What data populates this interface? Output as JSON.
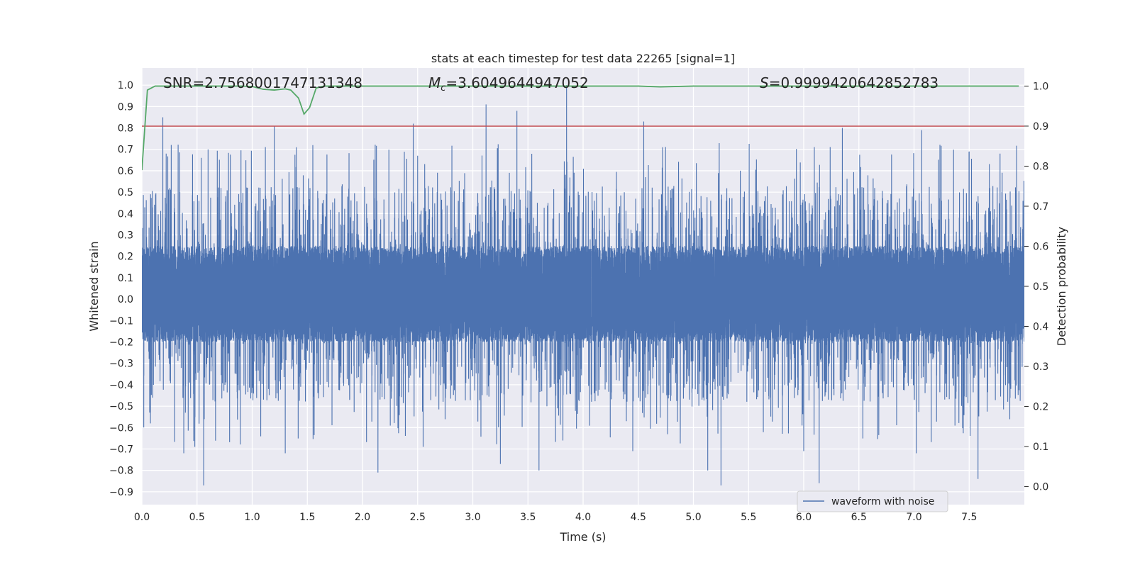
{
  "chart_data": {
    "type": "line",
    "title": "stats at each timestep for test data 22265 [signal=1]",
    "xlabel": "Time (s)",
    "ylabel": "Whitened strain",
    "y2label": "Detection probability",
    "xlim": [
      0.0,
      8.0
    ],
    "ylim": [
      -0.96,
      1.08
    ],
    "y2lim": [
      -0.045,
      1.045
    ],
    "grid": true,
    "x_ticks": [
      "0.0",
      "0.5",
      "1.0",
      "1.5",
      "2.0",
      "2.5",
      "3.0",
      "3.5",
      "4.0",
      "4.5",
      "5.0",
      "5.5",
      "6.0",
      "6.5",
      "7.0",
      "7.5"
    ],
    "y_ticks": [
      "1.0",
      "0.9",
      "0.8",
      "0.7",
      "0.6",
      "0.5",
      "0.4",
      "0.3",
      "0.2",
      "0.1",
      "0.0",
      "−0.1",
      "−0.2",
      "−0.3",
      "−0.4",
      "−0.5",
      "−0.6",
      "−0.7",
      "−0.8",
      "−0.9"
    ],
    "y2_ticks": [
      "1.0",
      "0.9",
      "0.8",
      "0.7",
      "0.6",
      "0.5",
      "0.4",
      "0.3",
      "0.2",
      "0.1",
      "0.0"
    ],
    "annotations": {
      "snr": "SNR=2.7568001747131348",
      "mc_symbol": "M",
      "mc_sub": "c",
      "mc_value": "=3.6049644947052",
      "s_symbol": "S",
      "s_value": "=0.9999420642852783"
    },
    "threshold": {
      "name": "detection threshold",
      "value": 0.9,
      "axis": "right",
      "color": "#c44e52"
    },
    "probability_series": {
      "name": "detection probability",
      "axis": "right",
      "color": "#55a868",
      "x": [
        0.0,
        0.05,
        0.12,
        0.2,
        0.5,
        0.9,
        1.0,
        1.1,
        1.2,
        1.3,
        1.35,
        1.42,
        1.47,
        1.52,
        1.58,
        1.65,
        1.9,
        2.5,
        3.5,
        4.5,
        4.7,
        5.0,
        6.0,
        7.0,
        7.95
      ],
      "y": [
        0.79,
        0.99,
        1.0,
        1.0,
        1.0,
        1.0,
        0.999,
        0.992,
        0.99,
        0.993,
        0.99,
        0.97,
        0.93,
        0.946,
        0.995,
        1.0,
        1.0,
        1.0,
        1.0,
        1.0,
        0.998,
        1.0,
        1.0,
        1.0,
        1.0
      ]
    },
    "waveform_series": {
      "name": "waveform with noise",
      "axis": "left",
      "color": "#4c72b0",
      "sample_rate": 2048,
      "duration": 8.0,
      "band": [
        -0.2,
        0.25
      ],
      "peaks_pos": [
        [
          0.19,
          0.85
        ],
        [
          0.22,
          0.68
        ],
        [
          0.6,
          0.7
        ],
        [
          1.2,
          0.81
        ],
        [
          1.4,
          0.71
        ],
        [
          1.55,
          0.72
        ],
        [
          2.46,
          0.82
        ],
        [
          2.5,
          0.67
        ],
        [
          3.12,
          0.91
        ],
        [
          3.4,
          0.88
        ],
        [
          3.85,
          1.0
        ],
        [
          4.55,
          0.83
        ],
        [
          4.72,
          0.71
        ],
        [
          6.35,
          0.8
        ],
        [
          7.07,
          0.79
        ],
        [
          7.5,
          0.69
        ],
        [
          7.78,
          0.68
        ]
      ],
      "peaks_neg": [
        [
          0.56,
          -0.87
        ],
        [
          0.48,
          -0.69
        ],
        [
          0.38,
          -0.72
        ],
        [
          1.3,
          -0.72
        ],
        [
          2.14,
          -0.81
        ],
        [
          2.55,
          -0.69
        ],
        [
          3.25,
          -0.77
        ],
        [
          3.6,
          -0.8
        ],
        [
          4.45,
          -0.71
        ],
        [
          5.13,
          -0.8
        ],
        [
          5.25,
          -0.87
        ],
        [
          6.14,
          -0.86
        ],
        [
          6.0,
          -0.71
        ],
        [
          7.02,
          -0.72
        ],
        [
          7.58,
          -0.84
        ]
      ]
    },
    "legend": {
      "label": "waveform with noise",
      "placement": "lower-right"
    }
  }
}
